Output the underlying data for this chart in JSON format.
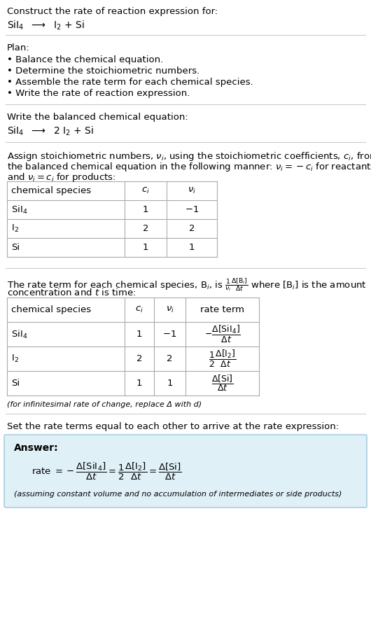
{
  "title_line1": "Construct the rate of reaction expression for:",
  "title_line2": "SiI$_4$  $\\longrightarrow$  I$_2$ + Si",
  "plan_header": "Plan:",
  "plan_items": [
    "• Balance the chemical equation.",
    "• Determine the stoichiometric numbers.",
    "• Assemble the rate term for each chemical species.",
    "• Write the rate of reaction expression."
  ],
  "balanced_header": "Write the balanced chemical equation:",
  "balanced_eq": "SiI$_4$  $\\longrightarrow$  2 I$_2$ + Si",
  "stoich_intro1": "Assign stoichiometric numbers, $\\nu_i$, using the stoichiometric coefficients, $c_i$, from",
  "stoich_intro2": "the balanced chemical equation in the following manner: $\\nu_i = -c_i$ for reactants",
  "stoich_intro3": "and $\\nu_i = c_i$ for products:",
  "table1_headers": [
    "chemical species",
    "$c_i$",
    "$\\nu_i$"
  ],
  "table1_rows": [
    [
      "SiI$_4$",
      "1",
      "$-1$"
    ],
    [
      "I$_2$",
      "2",
      "2"
    ],
    [
      "Si",
      "1",
      "1"
    ]
  ],
  "rate_intro1": "The rate term for each chemical species, B$_i$, is $\\frac{1}{\\nu_i}\\frac{\\Delta[\\mathrm{B}_i]}{\\Delta t}$ where [B$_i$] is the amount",
  "rate_intro2": "concentration and $t$ is time:",
  "table2_headers": [
    "chemical species",
    "$c_i$",
    "$\\nu_i$",
    "rate term"
  ],
  "table2_rows": [
    [
      "SiI$_4$",
      "1",
      "$-1$",
      "$-\\dfrac{\\Delta[\\mathrm{SiI_4}]}{\\Delta t}$"
    ],
    [
      "I$_2$",
      "2",
      "2",
      "$\\dfrac{1}{2}\\dfrac{\\Delta[\\mathrm{I_2}]}{\\Delta t}$"
    ],
    [
      "Si",
      "1",
      "1",
      "$\\dfrac{\\Delta[\\mathrm{Si}]}{\\Delta t}$"
    ]
  ],
  "infinitesimal_note": "(for infinitesimal rate of change, replace Δ with d)",
  "set_equal_text": "Set the rate terms equal to each other to arrive at the rate expression:",
  "answer_label": "Answer:",
  "answer_eq": "rate $= -\\dfrac{\\Delta[\\mathrm{SiI_4}]}{\\Delta t} = \\dfrac{1}{2}\\dfrac{\\Delta[\\mathrm{I_2}]}{\\Delta t} = \\dfrac{\\Delta[\\mathrm{Si}]}{\\Delta t}$",
  "answer_note": "(assuming constant volume and no accumulation of intermediates or side products)",
  "bg_color": "#ffffff",
  "answer_box_color": "#dff0f7",
  "text_color": "#000000",
  "table_line_color": "#aaaaaa",
  "sep_line_color": "#cccccc",
  "font_size": 9.5,
  "small_font_size": 8.0
}
